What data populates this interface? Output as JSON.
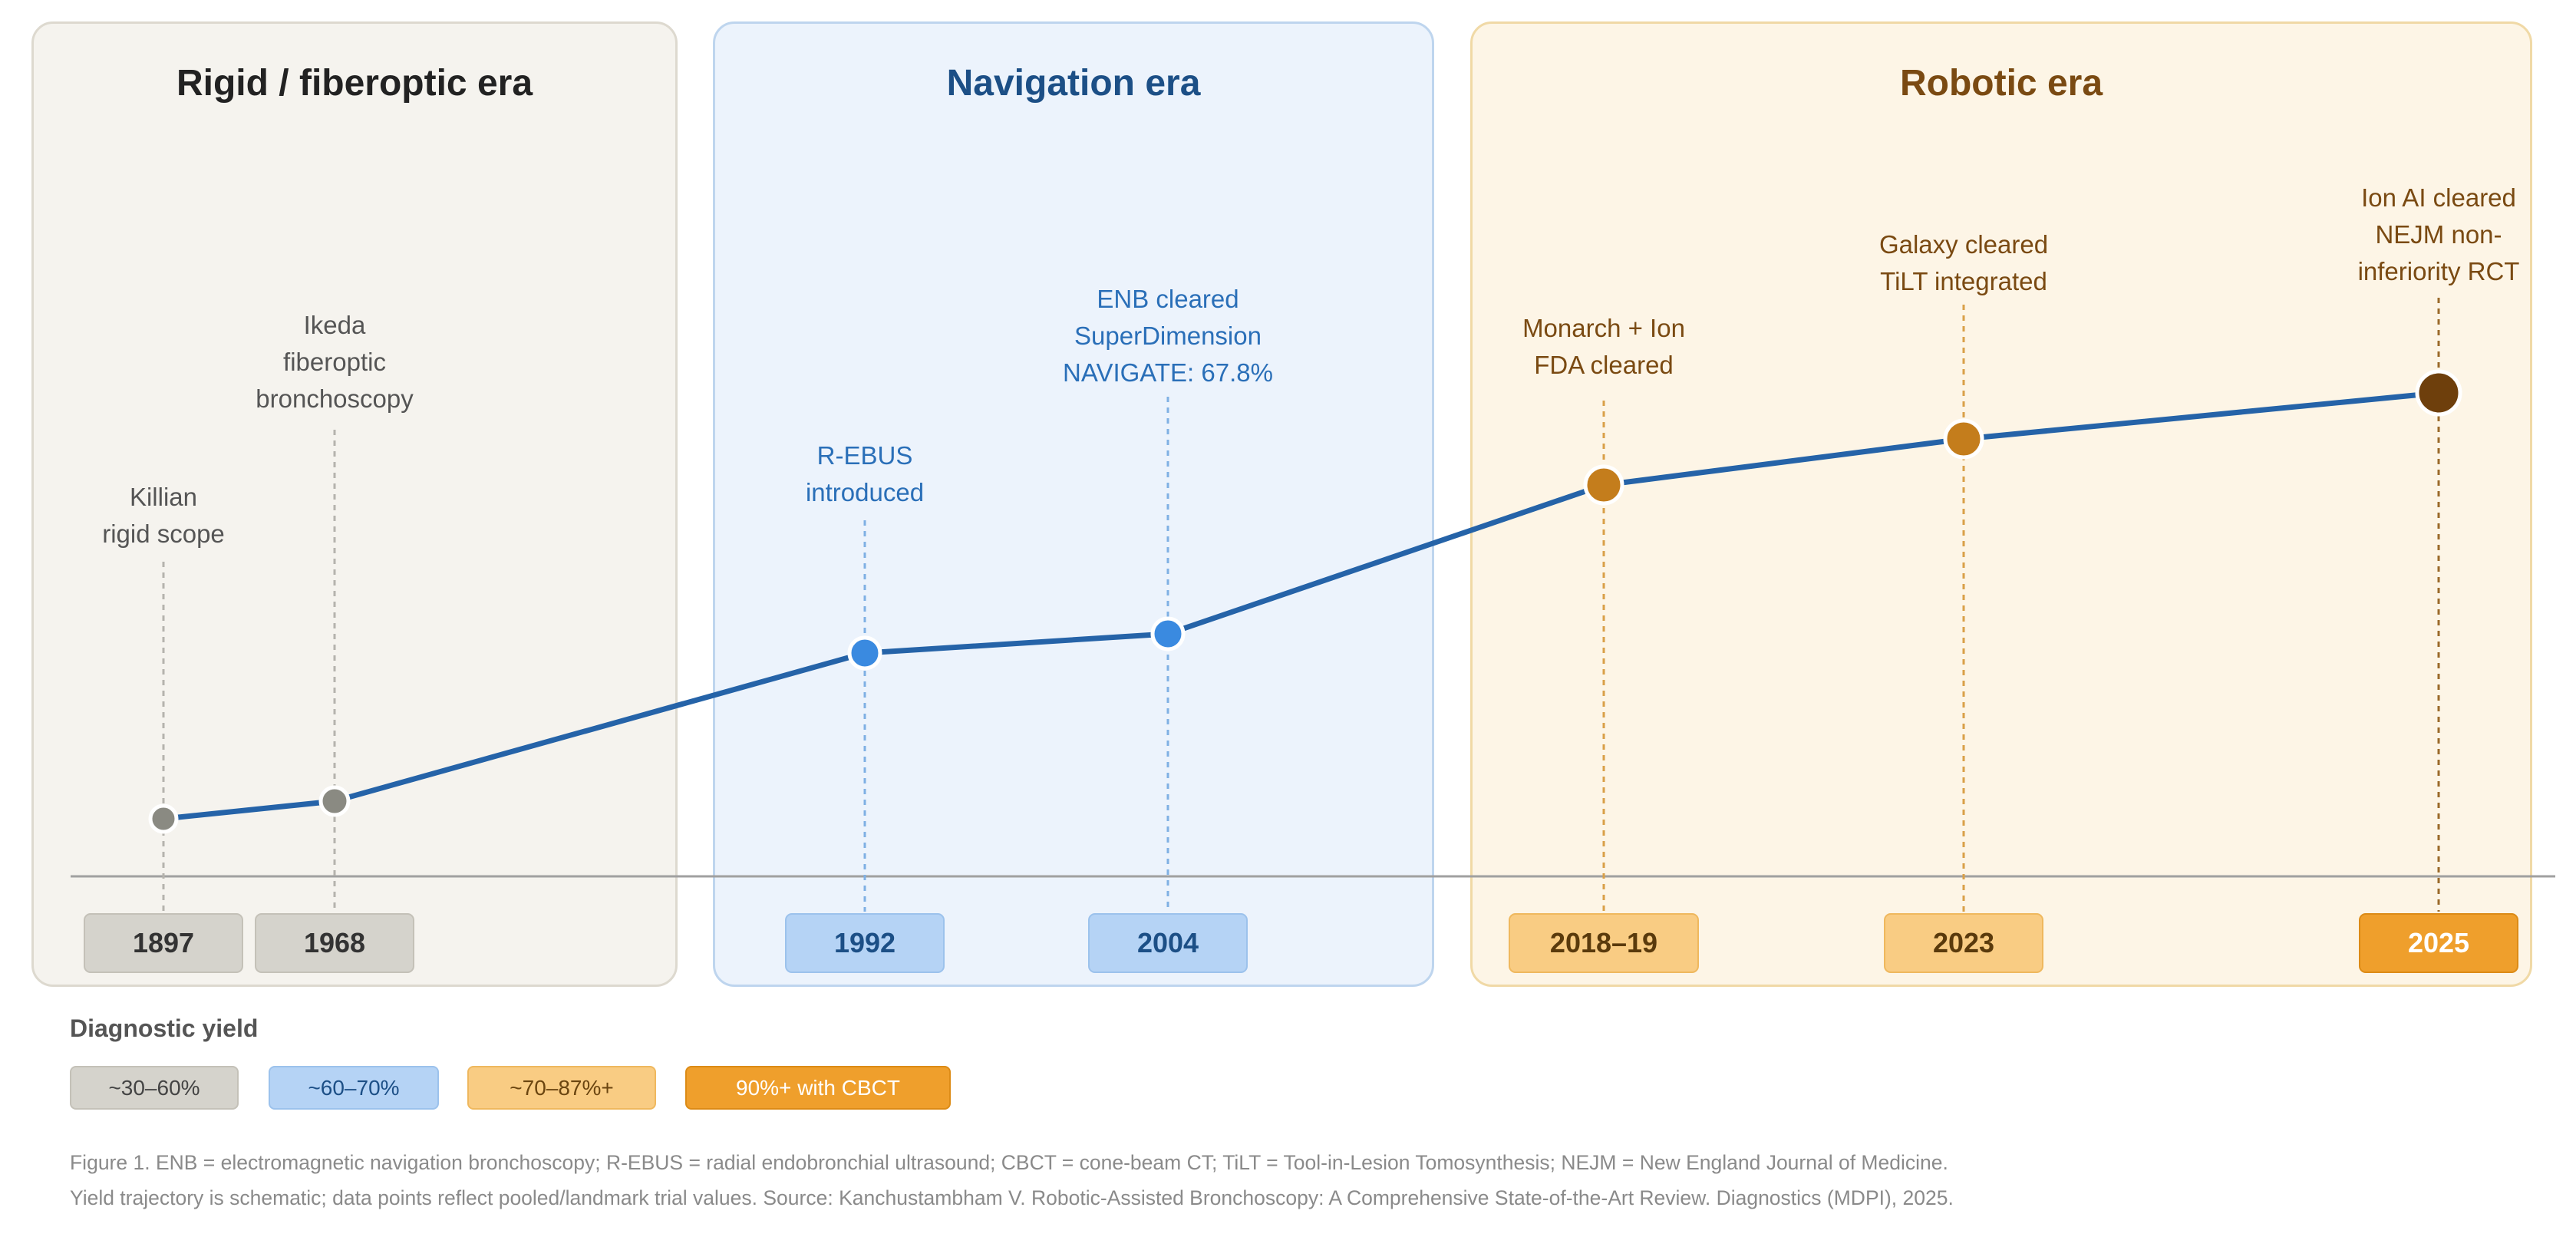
{
  "eras": [
    {
      "title": "Rigid / fiberoptic era",
      "color": "#222222"
    },
    {
      "title": "Navigation era",
      "color": "#1c4f86"
    },
    {
      "title": "Robotic era",
      "color": "#7a4a12"
    }
  ],
  "events": [
    {
      "year": "1897",
      "label": [
        "Killian",
        "rigid scope"
      ],
      "era": 0,
      "point_color": "#8a8a82"
    },
    {
      "year": "1968",
      "label": [
        "Ikeda",
        "fiberoptic",
        "bronchoscopy"
      ],
      "era": 0,
      "point_color": "#8a8a82"
    },
    {
      "year": "1992",
      "label": [
        "R-EBUS",
        "introduced"
      ],
      "era": 1,
      "point_color": "#3a8ae0"
    },
    {
      "year": "2004",
      "label": [
        "ENB cleared",
        "SuperDimension",
        "NAVIGATE: 67.8%"
      ],
      "era": 1,
      "point_color": "#3a8ae0"
    },
    {
      "year": "2018–19",
      "label": [
        "Monarch + Ion",
        "FDA cleared"
      ],
      "era": 2,
      "point_color": "#c47d1c"
    },
    {
      "year": "2023",
      "label": [
        "Galaxy cleared",
        "TiLT integrated"
      ],
      "era": 2,
      "point_color": "#c47d1c"
    },
    {
      "year": "2025",
      "label": [
        "Ion AI cleared",
        "NEJM non-",
        "inferiority RCT"
      ],
      "era": 2,
      "point_color": "#6e3f0c"
    }
  ],
  "legend": {
    "title": "Diagnostic yield",
    "items": [
      {
        "label": "~30–60%",
        "bg": "#d5d3cc",
        "fg": "#444444"
      },
      {
        "label": "~60–70%",
        "bg": "#b5d3f5",
        "fg": "#1c4f86"
      },
      {
        "label": "~70–87%+",
        "bg": "#f9cc83",
        "fg": "#6b4510"
      },
      {
        "label": "90%+ with CBCT",
        "bg": "#ef9f2c",
        "fg": "#ffffff"
      }
    ]
  },
  "caption": {
    "line1": "Figure 1. ENB = electromagnetic navigation bronchoscopy; R-EBUS = radial endobronchial ultrasound; CBCT = cone-beam CT; TiLT = Tool-in-Lesion Tomosynthesis; NEJM = New England Journal of Medicine.",
    "line2": "Yield trajectory is schematic; data points reflect pooled/landmark trial values. Source: Kanchustambham V. Robotic-Assisted Bronchoscopy: A Comprehensive State-of-the-Art Review. Diagnostics (MDPI), 2025."
  },
  "colors": {
    "line": "#2563a8",
    "axis": "#a0a0a0"
  }
}
